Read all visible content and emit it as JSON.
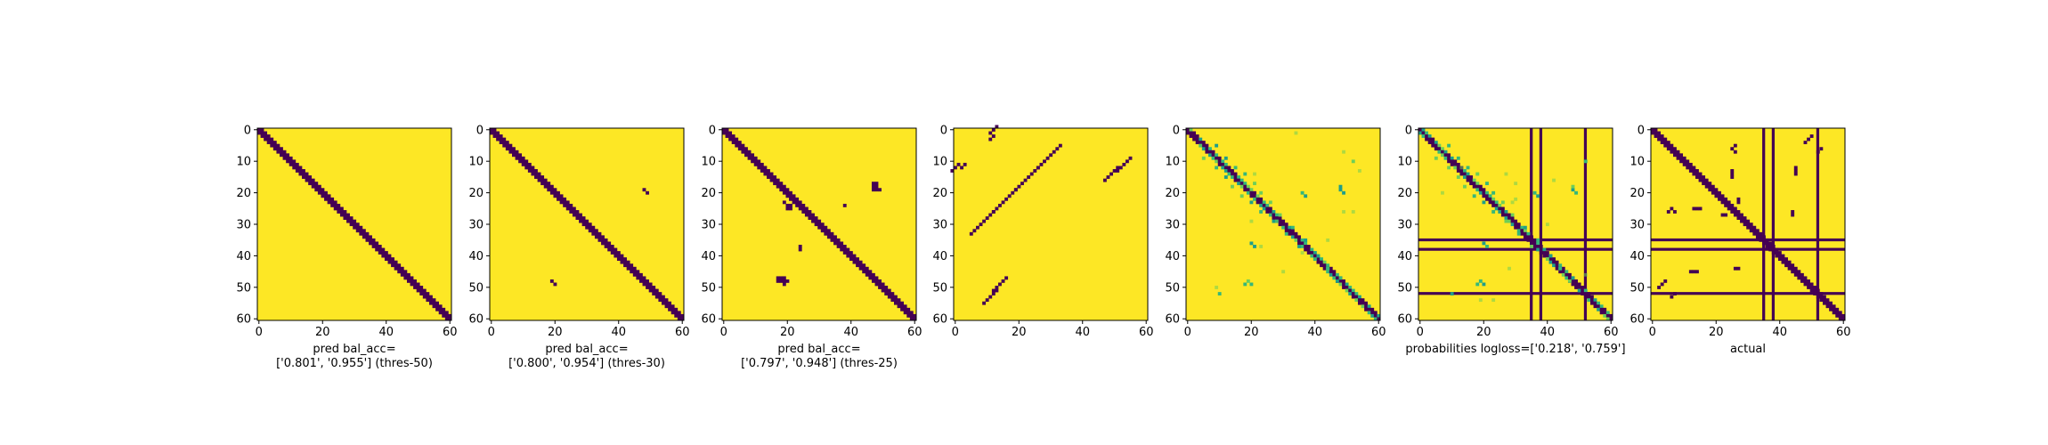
{
  "chart_data": [
    {
      "type": "heatmap",
      "title": "",
      "xlabel": "pred bal_acc=\n['0.801', '0.955'] (thres-50)",
      "ylabel": "",
      "size": 61,
      "xlim": [
        0,
        60
      ],
      "ylim": [
        60,
        0
      ],
      "xticks": [
        0,
        20,
        40,
        60
      ],
      "yticks": [
        0,
        10,
        20,
        30,
        40,
        50,
        60
      ],
      "description": "diagonal band |i-j|<=1",
      "band": 1,
      "blobs": []
    },
    {
      "type": "heatmap",
      "title": "",
      "xlabel": "pred bal_acc=\n['0.800', '0.954'] (thres-30)",
      "ylabel": "",
      "size": 61,
      "xlim": [
        0,
        60
      ],
      "ylim": [
        60,
        0
      ],
      "xticks": [
        0,
        20,
        40,
        60
      ],
      "yticks": [
        0,
        10,
        20,
        30,
        40,
        50,
        60
      ],
      "band": 1,
      "blobs": [
        [
          19,
          48
        ],
        [
          20,
          49
        ],
        [
          48,
          19
        ],
        [
          49,
          20
        ]
      ]
    },
    {
      "type": "heatmap",
      "title": "",
      "xlabel": "pred bal_acc=\n['0.797', '0.948'] (thres-25)",
      "ylabel": "",
      "size": 61,
      "xlim": [
        0,
        60
      ],
      "ylim": [
        60,
        0
      ],
      "xticks": [
        0,
        20,
        40,
        60
      ],
      "yticks": [
        0,
        10,
        20,
        30,
        40,
        50,
        60
      ],
      "band": 1,
      "blobs": [
        [
          17,
          47
        ],
        [
          17,
          48
        ],
        [
          18,
          47
        ],
        [
          18,
          48
        ],
        [
          19,
          47
        ],
        [
          19,
          48
        ],
        [
          19,
          49
        ],
        [
          47,
          17
        ],
        [
          48,
          17
        ],
        [
          47,
          18
        ],
        [
          48,
          18
        ],
        [
          47,
          19
        ],
        [
          48,
          19
        ],
        [
          49,
          19
        ],
        [
          48,
          20
        ],
        [
          24,
          20
        ],
        [
          24,
          21
        ],
        [
          25,
          20
        ],
        [
          25,
          21
        ],
        [
          23,
          19
        ],
        [
          24,
          38
        ],
        [
          37,
          24
        ],
        [
          38,
          24
        ]
      ]
    },
    {
      "type": "heatmap",
      "title": "",
      "xlabel": "",
      "ylabel": "",
      "size": 61,
      "xlim": [
        0,
        60
      ],
      "ylim": [
        60,
        0
      ],
      "xticks": [
        0,
        20,
        40,
        60
      ],
      "yticks": [
        0,
        10,
        20,
        30,
        40,
        50,
        60
      ],
      "segments": [
        [
          12,
          2,
          2
        ],
        [
          1,
          11,
          3
        ],
        [
          26,
          12,
          8
        ],
        [
          51,
          12,
          5
        ],
        [
          13,
          51,
          5
        ],
        [
          12,
          26,
          8
        ]
      ]
    },
    {
      "type": "heatmap",
      "title": "",
      "xlabel": "",
      "ylabel": "",
      "size": 61,
      "xlim": [
        0,
        60
      ],
      "ylim": [
        60,
        0
      ],
      "xticks": [
        0,
        20,
        40,
        60
      ],
      "yticks": [
        0,
        10,
        20,
        30,
        40,
        50,
        60
      ],
      "band": 1,
      "probabilistic": true
    },
    {
      "type": "heatmap",
      "title": "",
      "xlabel": "probabilities logloss=['0.218', '0.759']",
      "ylabel": "",
      "size": 61,
      "xlim": [
        0,
        60
      ],
      "ylim": [
        60,
        0
      ],
      "xticks": [
        0,
        20,
        40,
        60
      ],
      "yticks": [
        0,
        10,
        20,
        30,
        40,
        50,
        60
      ],
      "band": 1,
      "lines": [
        35,
        38,
        52
      ],
      "probabilistic": true
    },
    {
      "type": "heatmap",
      "title": "",
      "xlabel": "actual",
      "ylabel": "",
      "size": 61,
      "xlim": [
        0,
        60
      ],
      "ylim": [
        60,
        0
      ],
      "xticks": [
        0,
        20,
        40,
        60
      ],
      "yticks": [
        0,
        10,
        20,
        30,
        40,
        50,
        60
      ],
      "band": 1,
      "lines": [
        35,
        38,
        52
      ],
      "blobs": [
        [
          6,
          25
        ],
        [
          5,
          26
        ],
        [
          7,
          26
        ],
        [
          13,
          25
        ],
        [
          14,
          25
        ],
        [
          15,
          25
        ],
        [
          12,
          45
        ],
        [
          13,
          45
        ],
        [
          14,
          45
        ],
        [
          25,
          6
        ],
        [
          26,
          5
        ],
        [
          26,
          7
        ],
        [
          25,
          13
        ],
        [
          25,
          14
        ],
        [
          25,
          15
        ],
        [
          45,
          12
        ],
        [
          45,
          13
        ],
        [
          45,
          14
        ],
        [
          22,
          27
        ],
        [
          23,
          27
        ],
        [
          27,
          22
        ],
        [
          27,
          23
        ],
        [
          26,
          44
        ],
        [
          27,
          44
        ],
        [
          44,
          26
        ],
        [
          44,
          27
        ],
        [
          4,
          48
        ],
        [
          3,
          49
        ],
        [
          2,
          50
        ],
        [
          48,
          4
        ],
        [
          49,
          3
        ],
        [
          50,
          2
        ],
        [
          53,
          6
        ],
        [
          52,
          7
        ],
        [
          6,
          53
        ],
        [
          7,
          52
        ]
      ]
    }
  ],
  "colors": {
    "low": "#440154",
    "high": "#fde725",
    "mid1": "#35b779",
    "mid2": "#1f9e89",
    "mid3": "#6ece58"
  }
}
